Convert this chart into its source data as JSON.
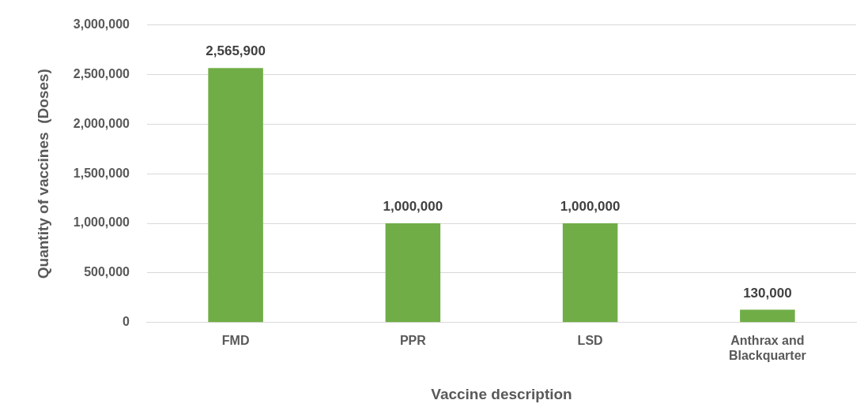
{
  "chart_data": {
    "type": "bar",
    "xlabel": "Vaccine description",
    "ylabel": "Quantity of vaccines  (Doses)",
    "categories": [
      "FMD",
      "PPR",
      "LSD",
      "Anthrax and Blackquarter"
    ],
    "values": [
      2565900,
      1000000,
      1000000,
      130000
    ],
    "value_labels": [
      "2,565,900",
      "1,000,000",
      "1,000,000",
      "130,000"
    ],
    "color": "#70ad47",
    "ylim": [
      0,
      3000000
    ],
    "yticks": [
      0,
      {
        "value": 500000,
        "label": "500,000"
      },
      {
        "value": 1000000,
        "label": "1,000,000"
      },
      {
        "value": 1500000,
        "label": "1,500,000"
      },
      {
        "value": 2000000,
        "label": "2,000,000"
      },
      {
        "value": 2500000,
        "label": "2,500,000"
      },
      {
        "value": 3000000,
        "label": "3,000,000"
      }
    ],
    "grid": "y",
    "legend": false
  }
}
